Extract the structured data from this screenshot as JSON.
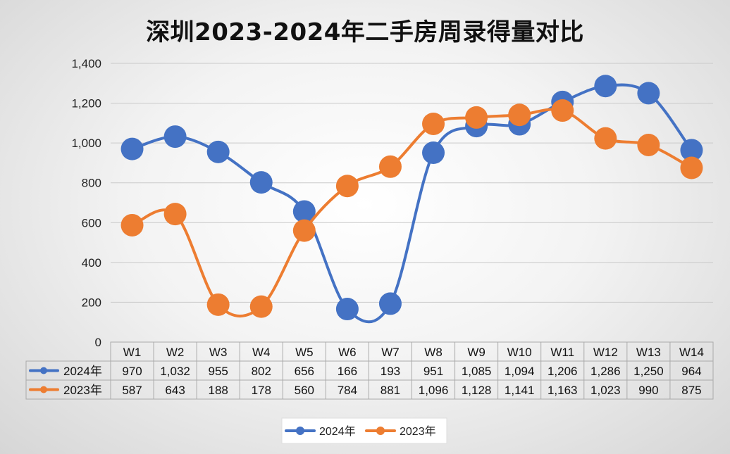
{
  "chart_data": {
    "type": "line",
    "title": "深圳2023-2024年二手房周录得量对比",
    "categories": [
      "W1",
      "W2",
      "W3",
      "W4",
      "W5",
      "W6",
      "W7",
      "W8",
      "W9",
      "W10",
      "W11",
      "W12",
      "W13",
      "W14"
    ],
    "ylim": [
      0,
      1400
    ],
    "yticks": [
      0,
      200,
      400,
      600,
      800,
      1000,
      1200,
      1400
    ],
    "ytick_labels": [
      "0",
      "200",
      "400",
      "600",
      "800",
      "1,000",
      "1,200",
      "1,400"
    ],
    "grid": true,
    "legend_position": "bottom",
    "series": [
      {
        "name": "2024年",
        "color": "#4472C4",
        "values": [
          970,
          1032,
          955,
          802,
          656,
          166,
          193,
          951,
          1085,
          1094,
          1206,
          1286,
          1250,
          964
        ],
        "labels": [
          "970",
          "1,032",
          "955",
          "802",
          "656",
          "166",
          "193",
          "951",
          "1,085",
          "1,094",
          "1,206",
          "1,286",
          "1,250",
          "964"
        ]
      },
      {
        "name": "2023年",
        "color": "#ED7D31",
        "values": [
          587,
          643,
          188,
          178,
          560,
          784,
          881,
          1096,
          1128,
          1141,
          1163,
          1023,
          990,
          875
        ],
        "labels": [
          "587",
          "643",
          "188",
          "178",
          "560",
          "784",
          "881",
          "1,096",
          "1,128",
          "1,141",
          "1,163",
          "1,023",
          "990",
          "875"
        ]
      }
    ]
  }
}
